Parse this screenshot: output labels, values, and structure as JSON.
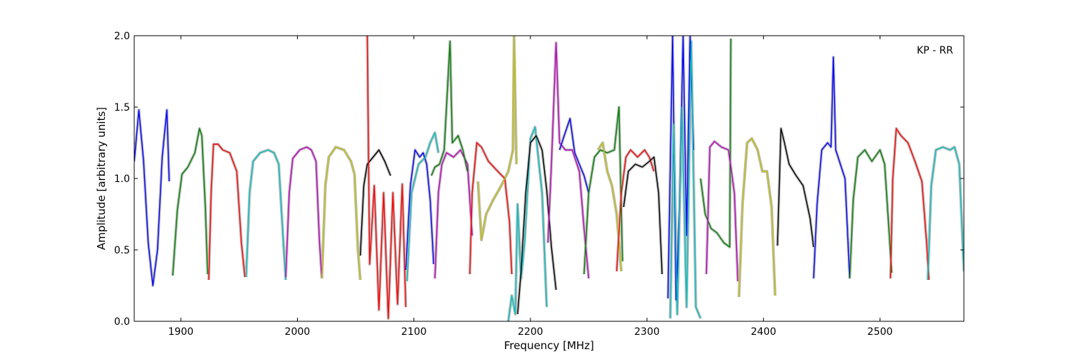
{
  "chart_data": {
    "type": "line",
    "title": "",
    "annotation": "KP - RR",
    "xlabel": "Frequency [MHz]",
    "ylabel": "Amplitude [arbitrary units]",
    "xlim": [
      1860,
      2572
    ],
    "ylim": [
      0.0,
      2.0
    ],
    "xticks": [
      1900,
      2000,
      2100,
      2200,
      2300,
      2400,
      2500
    ],
    "xtick_labels": [
      "1900",
      "2000",
      "2100",
      "2200",
      "2300",
      "2400",
      "2500"
    ],
    "yticks": [
      0.0,
      0.5,
      1.0,
      1.5,
      2.0
    ],
    "ytick_labels": [
      "0.0",
      "0.5",
      "1.0",
      "1.5",
      "2.0"
    ],
    "grid": false,
    "background_color": "#bfbfbf",
    "series": [
      {
        "color": "#0000ff",
        "x": [
          1860,
          1864,
          1868,
          1872,
          1876,
          1880,
          1884,
          1888,
          1890
        ],
        "y": [
          1.12,
          1.48,
          1.12,
          0.55,
          0.25,
          0.5,
          1.15,
          1.48,
          0.98
        ]
      },
      {
        "color": "#008000",
        "x": [
          1893,
          1897,
          1901,
          1906,
          1912,
          1916,
          1918,
          1921,
          1923
        ],
        "y": [
          0.32,
          0.78,
          1.03,
          1.08,
          1.18,
          1.35,
          1.3,
          0.8,
          0.33
        ]
      },
      {
        "color": "#ff0000",
        "x": [
          1924,
          1926,
          1928,
          1932,
          1936,
          1942,
          1948,
          1952,
          1955
        ],
        "y": [
          0.29,
          0.9,
          1.24,
          1.24,
          1.2,
          1.18,
          1.05,
          0.55,
          0.31
        ]
      },
      {
        "color": "#00bfbf",
        "x": [
          1956,
          1959,
          1962,
          1968,
          1975,
          1980,
          1984,
          1988,
          1990
        ],
        "y": [
          0.31,
          0.9,
          1.12,
          1.18,
          1.2,
          1.18,
          1.1,
          0.55,
          0.29
        ]
      },
      {
        "color": "#bf00bf",
        "x": [
          1990,
          1993,
          1996,
          2002,
          2008,
          2012,
          2016,
          2019,
          2021
        ],
        "y": [
          0.31,
          0.9,
          1.14,
          1.2,
          1.22,
          1.2,
          1.12,
          0.55,
          0.3
        ]
      },
      {
        "color": "#bfbf00",
        "x": [
          2021,
          2024,
          2027,
          2033,
          2040,
          2046,
          2049,
          2052,
          2054
        ],
        "y": [
          0.3,
          0.95,
          1.15,
          1.22,
          1.2,
          1.12,
          1.03,
          0.5,
          0.29
        ]
      },
      {
        "color": "#000000",
        "x": [
          2054,
          2057,
          2060,
          2065,
          2070,
          2075,
          2077,
          2080
        ],
        "y": [
          0.46,
          0.95,
          1.1,
          1.15,
          1.2,
          1.12,
          1.08,
          1.02
        ]
      },
      {
        "color": "#ff0000",
        "x": [
          2060,
          2062,
          2066,
          2070,
          2074,
          2078,
          2082,
          2086,
          2090,
          2093
        ],
        "y": [
          2.0,
          0.4,
          0.95,
          0.08,
          0.9,
          0.02,
          0.9,
          0.12,
          0.96,
          0.1
        ]
      },
      {
        "color": "#0000ff",
        "x": [
          2093,
          2097,
          2101,
          2105,
          2108,
          2111,
          2114,
          2117
        ],
        "y": [
          0.36,
          0.95,
          1.2,
          1.15,
          1.18,
          1.1,
          0.85,
          0.4
        ]
      },
      {
        "color": "#00bfbf",
        "x": [
          2094,
          2098,
          2104,
          2110,
          2114,
          2118,
          2121
        ],
        "y": [
          0.28,
          0.9,
          1.1,
          1.15,
          1.25,
          1.32,
          1.18
        ]
      },
      {
        "color": "#bf00bf",
        "x": [
          2118,
          2121,
          2124,
          2128,
          2134,
          2140,
          2146,
          2150
        ],
        "y": [
          0.3,
          0.9,
          1.1,
          1.18,
          1.15,
          1.2,
          1.1,
          0.6
        ]
      },
      {
        "color": "#008000",
        "x": [
          2115,
          2118,
          2122,
          2126,
          2131,
          2133,
          2138,
          2142,
          2146
        ],
        "y": [
          1.02,
          1.08,
          1.1,
          1.2,
          1.96,
          1.25,
          1.3,
          1.2,
          1.05
        ]
      },
      {
        "color": "#ff0000",
        "x": [
          2148,
          2150,
          2154,
          2158,
          2164,
          2172,
          2178,
          2182,
          2184
        ],
        "y": [
          0.33,
          0.9,
          1.25,
          1.22,
          1.12,
          1.05,
          1.0,
          0.7,
          0.33
        ]
      },
      {
        "color": "#bfbf00",
        "x": [
          2155,
          2158,
          2162,
          2168,
          2175,
          2181,
          2185,
          2186,
          2188
        ],
        "y": [
          0.98,
          0.57,
          0.75,
          0.85,
          0.95,
          1.05,
          1.2,
          2.0,
          1.1
        ]
      },
      {
        "color": "#00bfbf",
        "x": [
          2181,
          2184,
          2187,
          2189,
          2192,
          2195,
          2200,
          2204,
          2210,
          2214
        ],
        "y": [
          0.0,
          0.18,
          0.05,
          0.82,
          0.3,
          0.55,
          1.28,
          1.36,
          0.9,
          0.1
        ]
      },
      {
        "color": "#000000",
        "x": [
          2189,
          2192,
          2196,
          2200,
          2205,
          2210,
          2214,
          2218,
          2222
        ],
        "y": [
          0.05,
          0.35,
          0.9,
          1.25,
          1.3,
          1.2,
          0.92,
          0.52,
          0.22
        ]
      },
      {
        "color": "#bf00bf",
        "x": [
          2215,
          2218,
          2222,
          2225,
          2230,
          2236,
          2242,
          2246,
          2250
        ],
        "y": [
          0.55,
          1.1,
          1.95,
          1.25,
          1.2,
          1.2,
          1.05,
          0.65,
          0.3
        ]
      },
      {
        "color": "#0000ff",
        "x": [
          2225,
          2229,
          2234,
          2238,
          2242,
          2246,
          2250
        ],
        "y": [
          1.2,
          1.3,
          1.42,
          1.18,
          1.1,
          1.02,
          0.9
        ]
      },
      {
        "color": "#008000",
        "x": [
          2246,
          2250,
          2255,
          2260,
          2266,
          2272,
          2276,
          2279
        ],
        "y": [
          0.33,
          0.9,
          1.15,
          1.2,
          1.18,
          1.2,
          1.5,
          0.42
        ]
      },
      {
        "color": "#bfbf00",
        "x": [
          2258,
          2262,
          2266,
          2270,
          2274,
          2278
        ],
        "y": [
          1.2,
          1.25,
          1.05,
          0.95,
          0.75,
          0.35
        ]
      },
      {
        "color": "#ff0000",
        "x": [
          2274,
          2278,
          2282,
          2286,
          2292,
          2298,
          2302,
          2306
        ],
        "y": [
          0.35,
          0.9,
          1.15,
          1.2,
          1.15,
          1.2,
          1.15,
          1.05
        ]
      },
      {
        "color": "#000000",
        "x": [
          2280,
          2284,
          2290,
          2296,
          2302,
          2306,
          2310,
          2313
        ],
        "y": [
          0.8,
          1.05,
          1.1,
          1.08,
          1.12,
          1.15,
          0.9,
          0.33
        ]
      },
      {
        "color": "#0000ff",
        "x": [
          2318,
          2322,
          2325,
          2328,
          2331,
          2334,
          2337,
          2340
        ],
        "y": [
          0.16,
          2.0,
          0.15,
          0.8,
          2.0,
          0.6,
          2.0,
          1.2
        ]
      },
      {
        "color": "#00bfbf",
        "x": [
          2320,
          2323,
          2326,
          2330,
          2334,
          2338,
          2342,
          2346
        ],
        "y": [
          0.02,
          1.38,
          0.05,
          1.5,
          0.1,
          1.96,
          0.1,
          0.02
        ]
      },
      {
        "color": "#008000",
        "x": [
          2346,
          2350,
          2355,
          2360,
          2366,
          2371,
          2372
        ],
        "y": [
          1.0,
          0.75,
          0.65,
          0.62,
          0.55,
          0.52,
          1.98
        ]
      },
      {
        "color": "#bf00bf",
        "x": [
          2351,
          2354,
          2358,
          2364,
          2370,
          2375,
          2378
        ],
        "y": [
          0.33,
          1.22,
          1.26,
          1.22,
          1.2,
          0.9,
          0.28
        ]
      },
      {
        "color": "#bfbf00",
        "x": [
          2379,
          2382,
          2386,
          2390,
          2395,
          2399,
          2403,
          2407,
          2410
        ],
        "y": [
          0.17,
          0.82,
          1.25,
          1.28,
          1.2,
          1.05,
          1.05,
          0.8,
          0.18
        ]
      },
      {
        "color": "#000000",
        "x": [
          2412,
          2415,
          2418,
          2422,
          2428,
          2434,
          2440,
          2443
        ],
        "y": [
          0.53,
          1.35,
          1.25,
          1.1,
          1.02,
          0.95,
          0.72,
          0.52
        ]
      },
      {
        "color": "#0000ff",
        "x": [
          2443,
          2446,
          2450,
          2455,
          2458,
          2460,
          2462,
          2466,
          2470,
          2474
        ],
        "y": [
          0.3,
          0.82,
          1.2,
          1.25,
          1.22,
          1.85,
          1.2,
          1.1,
          1.0,
          0.3
        ]
      },
      {
        "color": "#008000",
        "x": [
          2474,
          2477,
          2481,
          2487,
          2493,
          2500,
          2504,
          2508,
          2510
        ],
        "y": [
          0.3,
          0.85,
          1.15,
          1.2,
          1.12,
          1.2,
          1.1,
          0.6,
          0.34
        ]
      },
      {
        "color": "#ff0000",
        "x": [
          2509,
          2511,
          2514,
          2518,
          2524,
          2530,
          2536,
          2540,
          2542
        ],
        "y": [
          0.3,
          1.0,
          1.35,
          1.3,
          1.25,
          1.12,
          0.98,
          0.55,
          0.29
        ]
      },
      {
        "color": "#00bfbf",
        "x": [
          2541,
          2544,
          2548,
          2554,
          2560,
          2564,
          2568,
          2572
        ],
        "y": [
          0.29,
          0.95,
          1.2,
          1.22,
          1.2,
          1.22,
          1.1,
          0.35
        ]
      }
    ]
  }
}
